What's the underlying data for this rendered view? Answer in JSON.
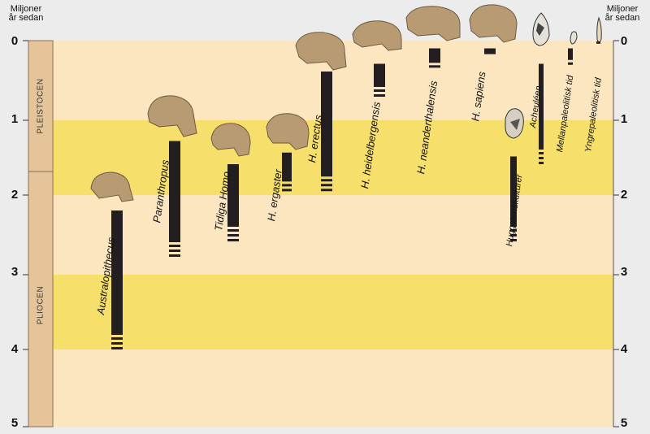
{
  "axis": {
    "left_label_line1": "Miljoner",
    "left_label_line2": "år sedan",
    "right_label_line1": "Miljoner",
    "right_label_line2": "år sedan",
    "ticks": [
      "0",
      "1",
      "2",
      "3",
      "4",
      "5"
    ]
  },
  "epochs": {
    "pleistocene": "PLEISTOCEN",
    "pliocene": "PLIOCEN"
  },
  "colors": {
    "light_band": "#fbe6c0",
    "yellow_band": "#f6df6a",
    "epoch_column": "#e6c49a",
    "bar": "#231f20",
    "skull": "#b89b73"
  },
  "taxa": [
    {
      "name": "Australopithecus",
      "start_mya": 4.0,
      "end_mya": 2.2
    },
    {
      "name": "Paranthropus",
      "start_mya": 2.8,
      "end_mya": 1.3
    },
    {
      "name": "Tidiga Homo",
      "start_mya": 2.6,
      "end_mya": 1.6
    },
    {
      "name": "H. ergaster",
      "start_mya": 1.95,
      "end_mya": 1.45
    },
    {
      "name": "H. erectus",
      "start_mya": 1.95,
      "end_mya": 0.4
    },
    {
      "name": "H. heidelbergensis",
      "start_mya": 0.7,
      "end_mya": 0.3
    },
    {
      "name": "H. neanderthalensis",
      "start_mya": 0.35,
      "end_mya": 0.1
    },
    {
      "name": "H. sapiens",
      "start_mya": 0.2,
      "end_mya": 0.1
    }
  ],
  "cultures": [
    {
      "name": "Huggstenskulturer",
      "start_mya": 2.6,
      "end_mya": 1.5
    },
    {
      "name": "Acheuléen",
      "start_mya": 1.6,
      "end_mya": 0.3
    },
    {
      "name": "Mellanpaleolitisk tid",
      "start_mya": 0.3,
      "end_mya": 0.1
    },
    {
      "name": "Yngrepaleolitisk tid",
      "start_mya": 0.05,
      "end_mya": 0.01
    }
  ]
}
